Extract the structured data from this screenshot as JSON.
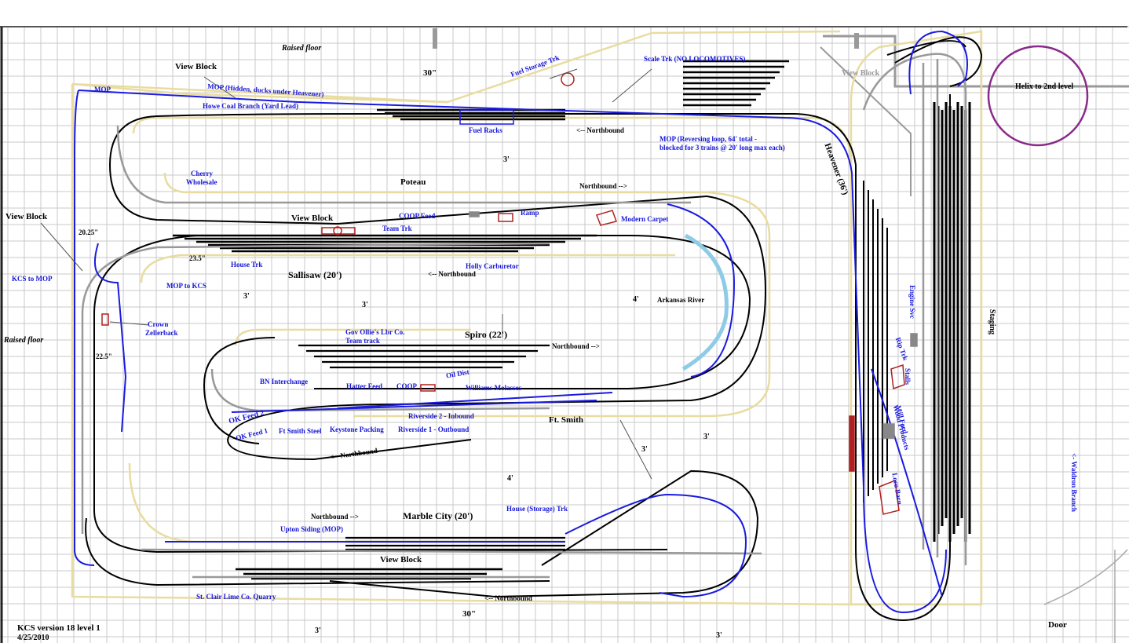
{
  "title": {
    "line1": "KCS version 18 level 1",
    "line2": "4/25/2010"
  },
  "colors": {
    "grid": "#c9c9c9",
    "track": "#000000",
    "mop_track": "#1a1ae0",
    "benchwork": "#e9dca0",
    "helix": "#8a2a8a",
    "river": "#8ecbe6",
    "structure": "#b02020"
  },
  "labels": {
    "raised_floor_top": "Raised floor",
    "raised_floor_left": "Raised floor",
    "dim_30_top": "30\"",
    "dim_30_bottom": "30\"",
    "dim_3_a": "3'",
    "dim_3_b": "3'",
    "dim_3_c": "3'",
    "dim_3_d": "3'",
    "dim_3_e": "3'",
    "dim_3_f": "3'",
    "dim_3_g": "3'",
    "dim_4_a": "4'",
    "dim_4_b": "4'",
    "view_block_1": "View Block",
    "view_block_2": "View Block",
    "view_block_3": "View Block",
    "view_block_4": "View Block",
    "view_block_5": "View Block",
    "mop": "MOP",
    "mop_hidden": "MOP (Hidden, ducks under Heavener)",
    "howe_coal": "Howe Coal Branch (Yard Lead)",
    "fuel_storage": "Fuel Storage Trk",
    "fuel_racks": "Fuel Racks",
    "scale_trk": "Scale Trk (NO LOCOMOTIVES)",
    "northbound_1": "<-- Northbound",
    "northbound_2": "Northbound -->",
    "northbound_3": "<-- Northbound",
    "northbound_4": "Northbound -->",
    "northbound_5": "<-- Northbound",
    "northbound_6": "Northbound -->",
    "northbound_7": "<-- Northbound",
    "mop_reversing_1": "MOP (Reversing loop, 64' total -",
    "mop_reversing_2": "blocked for 3 trains @ 20' long max each)",
    "heavener": "Heavener (36')",
    "helix": "Helix to 2nd level",
    "cherry_1": "Cherry",
    "cherry_2": "Wholesale",
    "poteau": "Poteau",
    "coop_feed": "COOP Feed",
    "ramp": "Ramp",
    "modern_carpet": "Modern Carpet",
    "team_trk": "Team Trk",
    "dim_20_25": "20.25\"",
    "dim_23_5": "23.5\"",
    "dim_22_5": "22.5\"",
    "house_trk": "House Trk",
    "sallisaw": "Sallisaw (20')",
    "holly": "Holly Carburetor",
    "kcs_to_mop": "KCS to MOP",
    "mop_to_kcs": "MOP to KCS",
    "crown_1": "Crown",
    "crown_2": "Zellerback",
    "arkansas": "Arkansas River",
    "gov_ollie": "Gov Ollie's Lbr Co.",
    "team_track": "Team track",
    "spiro": "Spiro (22')",
    "oil_distr": "Oil Dist",
    "bn_interchange": "BN Interchange",
    "hatter_feed": "Hatter Feed",
    "coop": "COOP",
    "williams": "Williams Molasses",
    "ok_feed_2": "OK Feed 2",
    "ok_feed_1": "OK Feed 1",
    "ft_smith_steel": "Ft Smith Steel",
    "keystone": "Keystone Packing",
    "riverside_2": "Riverside 2 - Inbound",
    "riverside_1": "Riverside 1 - Outbound",
    "ft_smith": "Ft. Smith",
    "marble_city": "Marble City (20')",
    "house_storage": "House (Storage) Trk",
    "upton": "Upton Siding (MOP)",
    "st_clair": "St. Clair Lime Co. Quarry",
    "staging": "Staging",
    "engine_svc": "Engine Svc",
    "rip_trk": "Rip Trk",
    "stalls": "Stalls",
    "mill_feed_1": "Mill Feed",
    "mill_feed_2": "Wood Products",
    "loco_barn": "Loco Barn",
    "waldron": "<- Waldron Branch",
    "door": "Door"
  }
}
